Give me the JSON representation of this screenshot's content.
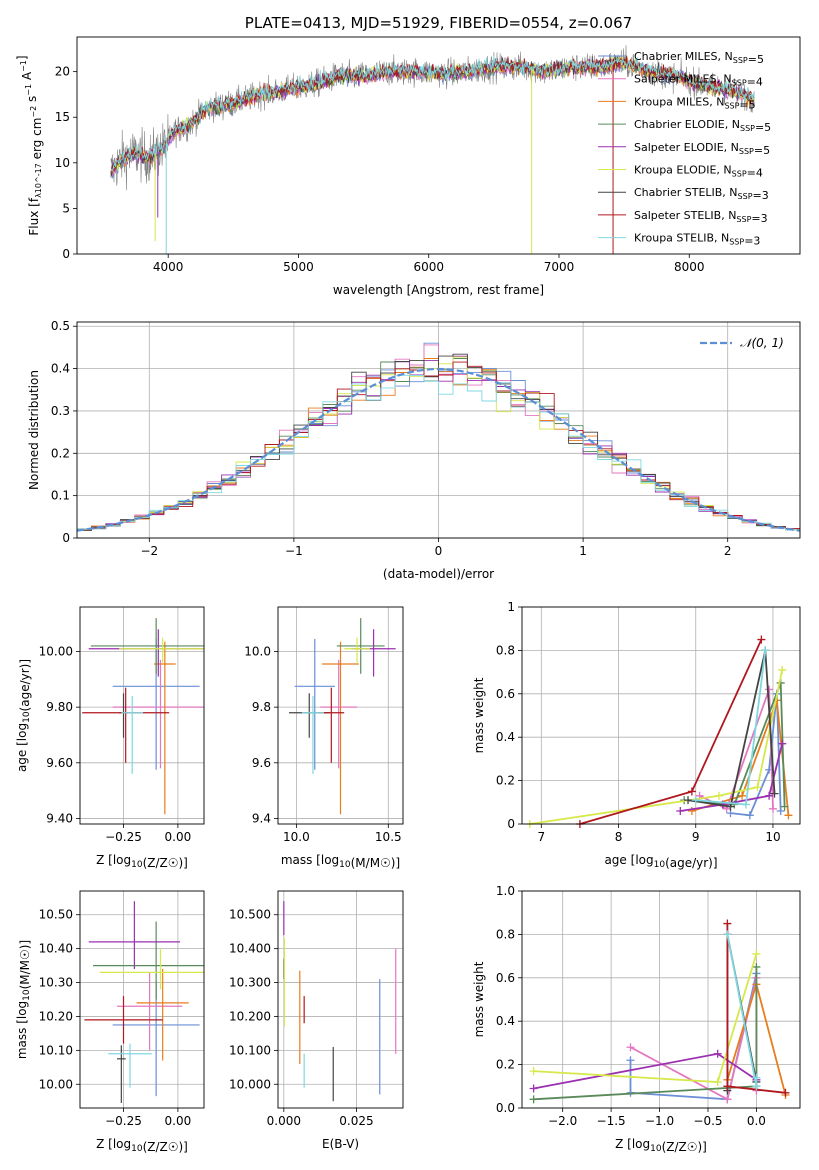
{
  "chart_data": [
    {
      "id": "spectrum",
      "type": "line",
      "title": "PLATE=0413, MJD=51929, FIBERID=0554, z=0.067",
      "xlabel": "wavelength [Angstrom, rest frame]",
      "ylabel": "Flux [f_λ10^-17 erg cm^-2 s^-1 A^-1]",
      "xlim": [
        3300,
        8850
      ],
      "ylim": [
        0,
        23.8
      ],
      "xticks": [
        4000,
        5000,
        6000,
        7000,
        8000
      ],
      "yticks": [
        0,
        5,
        10,
        15,
        20
      ],
      "grid": false,
      "legend_position": "top-right",
      "observed_color": "#808080",
      "series": [
        {
          "name": "Chabrier MILES, N_SSP=5",
          "color": "#6a8fd6"
        },
        {
          "name": "Salpeter MILES, N_SSP=4",
          "color": "#e377c2"
        },
        {
          "name": "Kroupa MILES, N_SSP=5",
          "color": "#e87d1e"
        },
        {
          "name": "Chabrier ELODIE, N_SSP=5",
          "color": "#5a8a5a"
        },
        {
          "name": "Salpeter ELODIE, N_SSP=5",
          "color": "#9b30b0"
        },
        {
          "name": "Kroupa ELODIE, N_SSP=4",
          "color": "#d6e84a"
        },
        {
          "name": "Chabrier STELIB, N_SSP=3",
          "color": "#444444"
        },
        {
          "name": "Salpeter STELIB, N_SSP=3",
          "color": "#b0171f"
        },
        {
          "name": "Kroupa STELIB, N_SSP=3",
          "color": "#7fd8e0"
        }
      ],
      "continuum": {
        "x": [
          3560,
          3650,
          3750,
          3850,
          3950,
          4050,
          4150,
          4300,
          4500,
          4700,
          4900,
          5100,
          5300,
          5500,
          5700,
          5900,
          6100,
          6300,
          6500,
          6700,
          6900,
          7100,
          7300,
          7500,
          7700,
          7900,
          8100,
          8300,
          8500
        ],
        "y": [
          9.0,
          10.5,
          11.0,
          10.5,
          11.5,
          13.5,
          14.0,
          16.0,
          16.5,
          17.5,
          18.0,
          18.5,
          19.5,
          19.5,
          20.0,
          20.0,
          19.8,
          20.0,
          20.5,
          20.5,
          20.0,
          20.5,
          20.5,
          21.0,
          20.0,
          19.5,
          18.5,
          18.0,
          17.0
        ]
      }
    },
    {
      "id": "residuals",
      "type": "histogram",
      "xlabel": "(data-model)/error",
      "ylabel": "Normed distribution",
      "xlim": [
        -2.5,
        2.5
      ],
      "ylim": [
        0,
        0.51
      ],
      "xticks": [
        -2,
        -1,
        0,
        1,
        2
      ],
      "yticks": [
        0.0,
        0.1,
        0.2,
        0.3,
        0.4,
        0.5
      ],
      "grid": true,
      "bin_width": 0.1,
      "reference_curve": {
        "name": "𝒩(0, 1)",
        "mean": 0,
        "sigma": 1,
        "color": "#5b8fd6",
        "style": "dashed"
      },
      "legend_position": "top-right"
    },
    {
      "id": "age_vs_Z",
      "type": "errorbar",
      "xlabel": "Z [log10(Z/Z☉)]",
      "ylabel": "age [log10(age/yr)]",
      "xlim": [
        -0.45,
        0.12
      ],
      "ylim": [
        9.38,
        10.16
      ],
      "xticks": [
        -0.25,
        0.0
      ],
      "yticks": [
        9.4,
        9.6,
        9.8,
        10.0
      ],
      "grid": true,
      "points": [
        {
          "x": -0.1,
          "y": 9.875,
          "xerr": 0.2,
          "yerr": [
            0.3,
            0.17
          ],
          "color": "#6a8fd6"
        },
        {
          "x": -0.08,
          "y": 9.8,
          "xerr": 0.22,
          "yerr": [
            0.22,
            0.17
          ],
          "color": "#e377c2"
        },
        {
          "x": -0.06,
          "y": 9.955,
          "xerr": 0.05,
          "yerr": [
            0.54,
            0.08
          ],
          "color": "#e87d1e"
        },
        {
          "x": -0.1,
          "y": 10.02,
          "xerr": 0.3,
          "yerr": [
            0.1,
            0.1
          ],
          "color": "#5a8a5a"
        },
        {
          "x": -0.09,
          "y": 10.01,
          "xerr": 0.32,
          "yerr": [
            0.1,
            0.07
          ],
          "color": "#9b30b0"
        },
        {
          "x": -0.07,
          "y": 10.01,
          "xerr": 0.2,
          "yerr": [
            0.05,
            0.04
          ],
          "color": "#d6e84a"
        },
        {
          "x": -0.25,
          "y": 9.78,
          "xerr": 0.02,
          "yerr": [
            0.09,
            0.07
          ],
          "color": "#444444"
        },
        {
          "x": -0.24,
          "y": 9.78,
          "xerr": 0.2,
          "yerr": [
            0.18,
            0.09
          ],
          "color": "#b0171f"
        },
        {
          "x": -0.21,
          "y": 9.78,
          "xerr": 0.05,
          "yerr": [
            0.22,
            0.06
          ],
          "color": "#7fd8e0"
        }
      ]
    },
    {
      "id": "age_vs_mass",
      "type": "errorbar",
      "xlabel": "mass [log10(M/M☉)]",
      "ylabel": "",
      "xlim": [
        9.9,
        10.58
      ],
      "ylim": [
        9.38,
        10.16
      ],
      "xticks": [
        10.0,
        10.5
      ],
      "yticks": [
        9.4,
        9.6,
        9.8,
        10.0
      ],
      "grid": true,
      "points": [
        {
          "x": 10.1,
          "y": 9.875,
          "xerr": 0.11,
          "yerr": [
            0.3,
            0.17
          ],
          "color": "#6a8fd6"
        },
        {
          "x": 10.23,
          "y": 9.8,
          "xerr": 0.1,
          "yerr": [
            0.22,
            0.17
          ],
          "color": "#e377c2"
        },
        {
          "x": 10.24,
          "y": 9.955,
          "xerr": 0.1,
          "yerr": [
            0.54,
            0.08
          ],
          "color": "#e87d1e"
        },
        {
          "x": 10.35,
          "y": 10.02,
          "xerr": 0.13,
          "yerr": [
            0.1,
            0.1
          ],
          "color": "#5a8a5a"
        },
        {
          "x": 10.42,
          "y": 10.01,
          "xerr": 0.12,
          "yerr": [
            0.1,
            0.07
          ],
          "color": "#9b30b0"
        },
        {
          "x": 10.33,
          "y": 10.01,
          "xerr": 0.07,
          "yerr": [
            0.05,
            0.04
          ],
          "color": "#d6e84a"
        },
        {
          "x": 10.07,
          "y": 9.78,
          "xerr": 0.11,
          "yerr": [
            0.09,
            0.07
          ],
          "color": "#444444"
        },
        {
          "x": 10.19,
          "y": 9.78,
          "xerr": 0.07,
          "yerr": [
            0.18,
            0.09
          ],
          "color": "#b0171f"
        },
        {
          "x": 10.09,
          "y": 9.78,
          "xerr": 0.06,
          "yerr": [
            0.22,
            0.06
          ],
          "color": "#7fd8e0"
        }
      ]
    },
    {
      "id": "mass_weight_vs_age",
      "type": "line",
      "xlabel": "age [log10(age/yr)]",
      "ylabel": "mass weight",
      "xlim": [
        6.75,
        10.35
      ],
      "ylim": [
        0,
        1.0
      ],
      "xticks": [
        7,
        8,
        9,
        10
      ],
      "yticks": [
        0.0,
        0.2,
        0.4,
        0.6,
        0.8,
        1.0
      ],
      "grid": true,
      "series": [
        {
          "color": "#6a8fd6",
          "x": [
            9.45,
            9.7,
            9.95,
            10.05,
            10.1
          ],
          "y": [
            0.05,
            0.04,
            0.25,
            0.6,
            0.06
          ]
        },
        {
          "color": "#e377c2",
          "x": [
            9.05,
            9.4,
            9.95,
            10.0
          ],
          "y": [
            0.13,
            0.07,
            0.62,
            0.07
          ]
        },
        {
          "color": "#e87d1e",
          "x": [
            8.95,
            9.6,
            10.05,
            10.2
          ],
          "y": [
            0.06,
            0.13,
            0.57,
            0.04
          ]
        },
        {
          "color": "#5a8a5a",
          "x": [
            8.85,
            9.5,
            10.1,
            10.15
          ],
          "y": [
            0.11,
            0.09,
            0.65,
            0.08
          ]
        },
        {
          "color": "#9b30b0",
          "x": [
            8.8,
            9.35,
            9.95,
            10.12
          ],
          "y": [
            0.06,
            0.09,
            0.13,
            0.37
          ]
        },
        {
          "color": "#d6e84a",
          "x": [
            6.85,
            9.3,
            9.8,
            10.12
          ],
          "y": [
            0.0,
            0.13,
            0.17,
            0.71
          ]
        },
        {
          "color": "#444444",
          "x": [
            8.9,
            9.45,
            9.9,
            10.02
          ],
          "y": [
            0.11,
            0.08,
            0.8,
            0.14
          ]
        },
        {
          "color": "#b0171f",
          "x": [
            7.5,
            8.95,
            9.85
          ],
          "y": [
            0.0,
            0.15,
            0.85
          ]
        },
        {
          "color": "#7fd8e0",
          "x": [
            9.0,
            9.65,
            9.9
          ],
          "y": [
            0.11,
            0.09,
            0.8
          ]
        }
      ]
    },
    {
      "id": "mass_vs_Z",
      "type": "errorbar",
      "xlabel": "Z [log10(Z/Z☉)]",
      "ylabel": "mass [log10(M/M☉)]",
      "xlim": [
        -0.45,
        0.12
      ],
      "ylim": [
        9.93,
        10.57
      ],
      "xticks": [
        -0.25,
        0.0
      ],
      "yticks": [
        10.0,
        10.1,
        10.2,
        10.3,
        10.4,
        10.5
      ],
      "grid": true,
      "points": [
        {
          "x": -0.1,
          "y": 10.175,
          "xerr": 0.2,
          "yerr": [
            0.21,
            0.13
          ],
          "color": "#6a8fd6"
        },
        {
          "x": -0.13,
          "y": 10.23,
          "xerr": 0.15,
          "yerr": [
            0.13,
            0.1
          ],
          "color": "#e377c2"
        },
        {
          "x": -0.07,
          "y": 10.24,
          "xerr": 0.12,
          "yerr": [
            0.17,
            0.1
          ],
          "color": "#e87d1e"
        },
        {
          "x": -0.1,
          "y": 10.35,
          "xerr": 0.29,
          "yerr": [
            0.1,
            0.13
          ],
          "color": "#5a8a5a"
        },
        {
          "x": -0.2,
          "y": 10.42,
          "xerr": 0.21,
          "yerr": [
            0.08,
            0.12
          ],
          "color": "#9b30b0"
        },
        {
          "x": -0.08,
          "y": 10.33,
          "xerr": 0.28,
          "yerr": [
            0.05,
            0.07
          ],
          "color": "#d6e84a"
        },
        {
          "x": -0.26,
          "y": 10.075,
          "xerr": 0.02,
          "yerr": [
            0.13,
            0.04
          ],
          "color": "#444444"
        },
        {
          "x": -0.25,
          "y": 10.19,
          "xerr": 0.18,
          "yerr": [
            0.07,
            0.07
          ],
          "color": "#b0171f"
        },
        {
          "x": -0.22,
          "y": 10.09,
          "xerr": 0.1,
          "yerr": [
            0.1,
            0.03
          ],
          "color": "#7fd8e0"
        }
      ]
    },
    {
      "id": "mass_vs_EBV",
      "type": "errorbar",
      "xlabel": "E(B-V)",
      "ylabel": "",
      "xlim": [
        -0.002,
        0.041
      ],
      "ylim": [
        9.93,
        10.57
      ],
      "xticks": [
        0.0,
        0.025
      ],
      "yticks": [
        10.0,
        10.1,
        10.2,
        10.3,
        10.4,
        10.5
      ],
      "grid": true,
      "points": [
        {
          "x": 0.033,
          "y": 10.14,
          "yerr": [
            0.17,
            0.17
          ],
          "color": "#6a8fd6"
        },
        {
          "x": 0.0385,
          "y": 10.25,
          "yerr": [
            0.16,
            0.15
          ],
          "color": "#e377c2"
        },
        {
          "x": 0.0055,
          "y": 10.2,
          "yerr": [
            0.14,
            0.135
          ],
          "color": "#e87d1e"
        },
        {
          "x": 0.0,
          "y": 10.35,
          "yerr": [
            0.04,
            0.02
          ],
          "color": "#5a8a5a"
        },
        {
          "x": 0.0,
          "y": 10.49,
          "yerr": [
            0.05,
            0.05
          ],
          "color": "#9b30b0"
        },
        {
          "x": 0.0002,
          "y": 10.33,
          "yerr": [
            0.16,
            0.1
          ],
          "color": "#d6e84a"
        },
        {
          "x": 0.017,
          "y": 10.03,
          "yerr": [
            0.08,
            0.08
          ],
          "color": "#444444"
        },
        {
          "x": 0.007,
          "y": 10.22,
          "yerr": [
            0.04,
            0.04
          ],
          "color": "#b0171f"
        },
        {
          "x": 0.007,
          "y": 10.04,
          "yerr": [
            0.05,
            0.05
          ],
          "color": "#7fd8e0"
        }
      ]
    },
    {
      "id": "mass_weight_vs_Z",
      "type": "line",
      "xlabel": "Z [log10(Z/Z☉)]",
      "ylabel": "mass weight",
      "xlim": [
        -2.42,
        0.45
      ],
      "ylim": [
        0,
        1.0
      ],
      "xticks": [
        -2.0,
        -1.5,
        -1.0,
        -0.5,
        0.0
      ],
      "yticks": [
        0.0,
        0.2,
        0.4,
        0.6,
        0.8,
        1.0
      ],
      "grid": true,
      "series": [
        {
          "color": "#6a8fd6",
          "x": [
            -1.3,
            -1.3,
            -0.3,
            0.0
          ],
          "y": [
            0.22,
            0.07,
            0.04,
            0.62
          ]
        },
        {
          "color": "#e377c2",
          "x": [
            -1.3,
            -0.3,
            0.0,
            0.0
          ],
          "y": [
            0.28,
            0.04,
            0.6,
            0.08
          ]
        },
        {
          "color": "#e87d1e",
          "x": [
            -0.3,
            0.0,
            0.3
          ],
          "y": [
            0.13,
            0.57,
            0.06
          ]
        },
        {
          "color": "#5a8a5a",
          "x": [
            -2.3,
            0.0,
            0.0
          ],
          "y": [
            0.04,
            0.1,
            0.65
          ]
        },
        {
          "color": "#9b30b0",
          "x": [
            -2.3,
            -0.4,
            0.0
          ],
          "y": [
            0.09,
            0.25,
            0.13
          ]
        },
        {
          "color": "#d6e84a",
          "x": [
            -2.3,
            -0.4,
            0.0
          ],
          "y": [
            0.17,
            0.12,
            0.71
          ]
        },
        {
          "color": "#444444",
          "x": [
            -0.3,
            -0.3,
            0.0
          ],
          "y": [
            0.08,
            0.8,
            0.12
          ]
        },
        {
          "color": "#b0171f",
          "x": [
            -0.3,
            -0.3,
            0.3
          ],
          "y": [
            0.85,
            0.1,
            0.07
          ]
        },
        {
          "color": "#7fd8e0",
          "x": [
            -0.3,
            0.0,
            0.0
          ],
          "y": [
            0.8,
            0.1,
            0.14
          ]
        }
      ]
    }
  ]
}
